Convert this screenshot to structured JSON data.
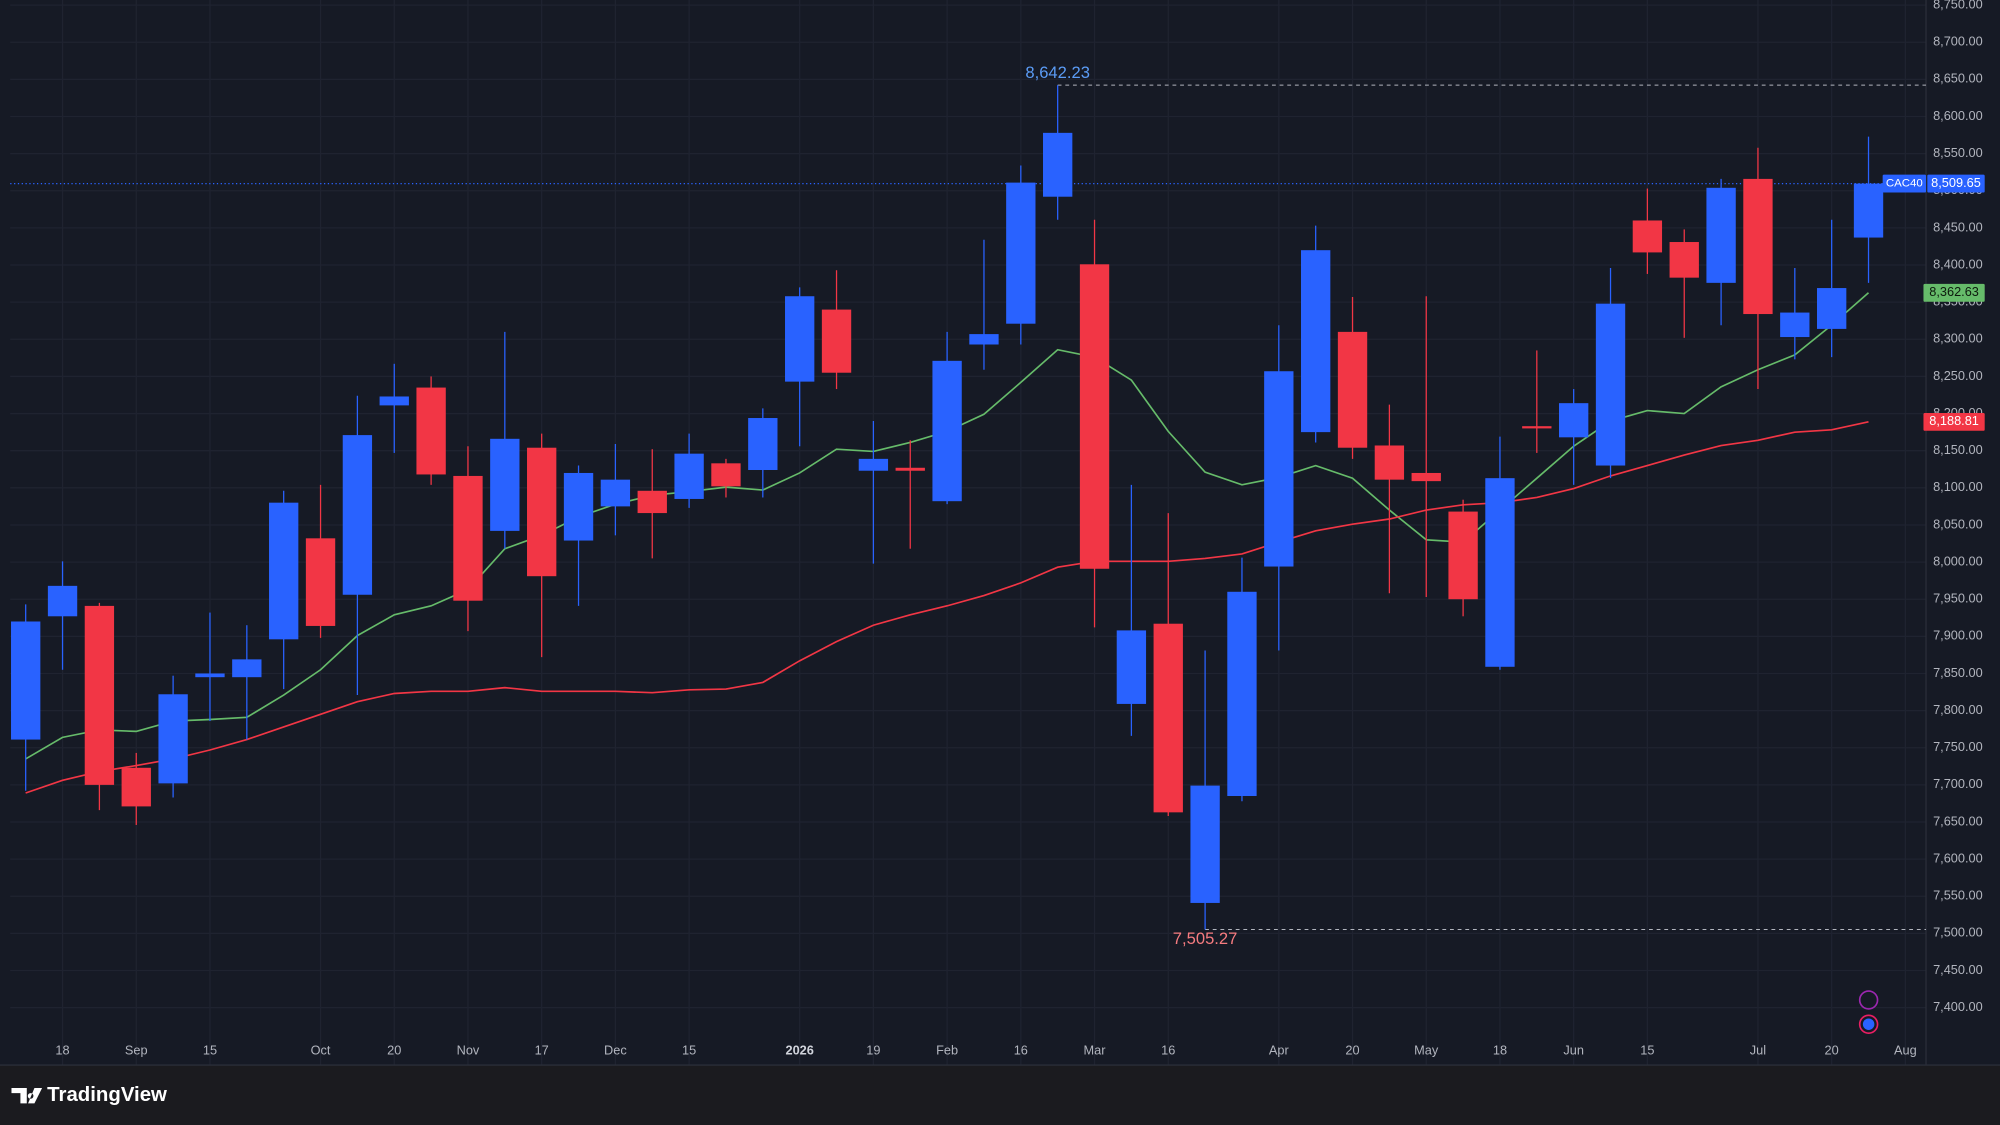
{
  "chart_data": {
    "type": "candlestick",
    "symbol": "CAC40",
    "up_color": "#2962ff",
    "down_color": "#f23645",
    "open": [
      7761,
      7927,
      7941,
      7723,
      7702,
      7845,
      7845,
      7896,
      8032,
      7956,
      8211,
      8235,
      8116,
      8042,
      8154,
      8029,
      8075,
      8096,
      8085,
      8133,
      8124,
      8243,
      8340,
      8123,
      8127,
      8082,
      8293,
      8321,
      8492,
      8401,
      7809,
      7917,
      7541,
      7685,
      7994,
      8175,
      8310,
      8157,
      8120,
      8068,
      7859,
      8183,
      8168,
      8130,
      8460,
      8431,
      8376,
      8516,
      8303,
      8314,
      8437
    ],
    "high": [
      7943,
      8001,
      7945,
      7743,
      7847,
      7932,
      7915,
      8096,
      8104,
      8224,
      8267,
      8250,
      8156,
      8310,
      8173,
      8130,
      8159,
      8152,
      8173,
      8139,
      8207,
      8370,
      8393,
      8190,
      8164,
      8310,
      8434,
      8534,
      8642.23,
      8461,
      8104,
      8066,
      7881,
      8006,
      8319,
      8453,
      8357,
      8212,
      8358,
      8084,
      8169,
      8285,
      8233,
      8396,
      8503,
      8448,
      8516,
      8558,
      8396,
      8461,
      8573
    ],
    "low": [
      7692,
      7855,
      7666,
      7646,
      7683,
      7786,
      7761,
      7829,
      7898,
      7821,
      8147,
      8104,
      7907,
      8018,
      7872,
      7941,
      8036,
      8005,
      8073,
      8087,
      8087,
      8156,
      8233,
      7998,
      8018,
      8078,
      8259,
      8293,
      8461,
      7912,
      7766,
      7658,
      7505.27,
      7678,
      7881,
      8161,
      8139,
      7958,
      7953,
      7927,
      7855,
      8147,
      8104,
      8113,
      8388,
      8302,
      8319,
      8233,
      8273,
      8276,
      8376
    ],
    "close": [
      7920,
      7968,
      7700,
      7671,
      7822,
      7850,
      7869,
      8080,
      7914,
      8171,
      8223,
      8118,
      7948,
      8166,
      7981,
      8120,
      8111,
      8066,
      8146,
      8102,
      8194,
      8358,
      8255,
      8139,
      8123,
      8271,
      8307,
      8511,
      8578,
      7991,
      7908,
      7663,
      7699,
      7960,
      8257,
      8420,
      8154,
      8111,
      8109,
      7950,
      8113,
      8180,
      8214,
      8348,
      8417,
      8383,
      8504,
      8334,
      8336,
      8369,
      8509.65
    ],
    "last_label": "8,509.65",
    "high_label": "8,642.23",
    "low_label": "7,505.27",
    "moving_averages": [
      {
        "color": "#66bb6a",
        "last_label": "8,362.63",
        "values": [
          7735,
          7764,
          7774,
          7772,
          7786,
          7788,
          7791,
          7821,
          7855,
          7901,
          7929,
          7941,
          7963,
          8018,
          8036,
          8061,
          8078,
          8090,
          8095,
          8101,
          8097,
          8120,
          8152,
          8149,
          8161,
          8176,
          8199,
          8242,
          8286,
          8276,
          8245,
          8176,
          8121,
          8104,
          8114,
          8130,
          8113,
          8070,
          8030,
          8027,
          8070,
          8113,
          8156,
          8190,
          8204,
          8200,
          8236,
          8259,
          8279,
          8319,
          8362.63
        ]
      },
      {
        "color": "#f23645",
        "last_label": "8,188.81",
        "values": [
          7689,
          7706,
          7718,
          7726,
          7735,
          7747,
          7761,
          7778,
          7795,
          7812,
          7823,
          7826,
          7826,
          7831,
          7826,
          7826,
          7826,
          7824,
          7828,
          7829,
          7838,
          7867,
          7893,
          7915,
          7929,
          7941,
          7955,
          7972,
          7993,
          8001,
          8001,
          8001,
          8005,
          8011,
          8027,
          8042,
          8051,
          8058,
          8070,
          8077,
          8080,
          8087,
          8099,
          8116,
          8130,
          8144,
          8157,
          8164,
          8175,
          8178,
          8188.81
        ]
      }
    ],
    "xlim": [
      -0.42,
      51.56
    ],
    "xticks": [
      {
        "value": 1,
        "label": "18"
      },
      {
        "value": 3,
        "label": "Sep"
      },
      {
        "value": 5,
        "label": "15"
      },
      {
        "value": 8,
        "label": "Oct"
      },
      {
        "value": 10,
        "label": "20"
      },
      {
        "value": 12,
        "label": "Nov"
      },
      {
        "value": 14,
        "label": "17"
      },
      {
        "value": 16,
        "label": "Dec"
      },
      {
        "value": 18,
        "label": "15"
      },
      {
        "value": 21,
        "label": "2026"
      },
      {
        "value": 23,
        "label": "19"
      },
      {
        "value": 25,
        "label": "Feb"
      },
      {
        "value": 27,
        "label": "16"
      },
      {
        "value": 29,
        "label": "Mar"
      },
      {
        "value": 31,
        "label": "16"
      },
      {
        "value": 34,
        "label": "Apr"
      },
      {
        "value": 36,
        "label": "20"
      },
      {
        "value": 38,
        "label": "May"
      },
      {
        "value": 40,
        "label": "18"
      },
      {
        "value": 42,
        "label": "Jun"
      },
      {
        "value": 44,
        "label": "15"
      },
      {
        "value": 47,
        "label": "Jul"
      },
      {
        "value": 49,
        "label": "20"
      },
      {
        "value": 51,
        "label": "Aug"
      }
    ],
    "ylim": [
      7322.7,
      8756.9
    ],
    "yticks": [
      {
        "value": 7400,
        "label": "7,400.00"
      },
      {
        "value": 7450,
        "label": "7,450.00"
      },
      {
        "value": 7500,
        "label": "7,500.00"
      },
      {
        "value": 7550,
        "label": "7,550.00"
      },
      {
        "value": 7600,
        "label": "7,600.00"
      },
      {
        "value": 7650,
        "label": "7,650.00"
      },
      {
        "value": 7700,
        "label": "7,700.00"
      },
      {
        "value": 7750,
        "label": "7,750.00"
      },
      {
        "value": 7800,
        "label": "7,800.00"
      },
      {
        "value": 7850,
        "label": "7,850.00"
      },
      {
        "value": 7900,
        "label": "7,900.00"
      },
      {
        "value": 7950,
        "label": "7,950.00"
      },
      {
        "value": 8000,
        "label": "8,000.00"
      },
      {
        "value": 8050,
        "label": "8,050.00"
      },
      {
        "value": 8100,
        "label": "8,100.00"
      },
      {
        "value": 8150,
        "label": "8,150.00"
      },
      {
        "value": 8200,
        "label": "8,200.00"
      },
      {
        "value": 8250,
        "label": "8,250.00"
      },
      {
        "value": 8300,
        "label": "8,300.00"
      },
      {
        "value": 8350,
        "label": "8,350.00"
      },
      {
        "value": 8400,
        "label": "8,400.00"
      },
      {
        "value": 8450,
        "label": "8,450.00"
      },
      {
        "value": 8500,
        "label": "8,500.00"
      },
      {
        "value": 8550,
        "label": "8,550.00"
      },
      {
        "value": 8600,
        "label": "8,600.00"
      },
      {
        "value": 8650,
        "label": "8,650.00"
      },
      {
        "value": 8700,
        "label": "8,700.00"
      },
      {
        "value": 8750,
        "label": "8,750.00"
      }
    ],
    "grid": true
  },
  "brand": "TradingView"
}
